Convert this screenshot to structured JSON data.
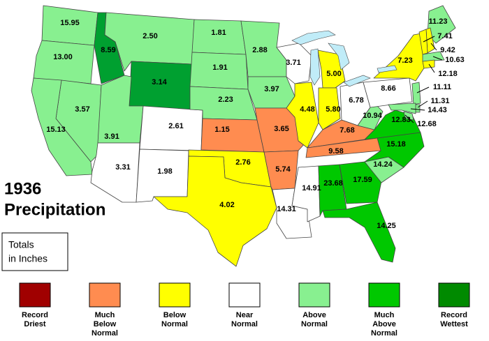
{
  "title": [
    "1936",
    "Precipitation"
  ],
  "units_box": [
    "Totals",
    "in Inches"
  ],
  "regions": [
    {
      "label": "15.95",
      "color": "#88f090"
    },
    {
      "label": "13.00",
      "color": "#88f090"
    },
    {
      "label": "8.59",
      "color": "#00a030"
    },
    {
      "label": "2.50",
      "color": "#88f090"
    },
    {
      "label": "3.14",
      "color": "#00a030"
    },
    {
      "label": "3.57",
      "color": "#88f090"
    },
    {
      "label": "15.13",
      "color": "#88f090"
    },
    {
      "label": "3.91",
      "color": "#88f090"
    },
    {
      "label": "3.31",
      "color": "#ffffff"
    },
    {
      "label": "2.61",
      "color": "#ffffff"
    },
    {
      "label": "1.98",
      "color": "#ffffff"
    },
    {
      "label": "1.81",
      "color": "#88f090"
    },
    {
      "label": "1.91",
      "color": "#88f090"
    },
    {
      "label": "2.23",
      "color": "#88f090"
    },
    {
      "label": "1.15",
      "color": "#ff8c50"
    },
    {
      "label": "2.76",
      "color": "#ffff00"
    },
    {
      "label": "4.02",
      "color": "#ffff00"
    },
    {
      "label": "2.88",
      "color": "#88f090"
    },
    {
      "label": "3.97",
      "color": "#88f090"
    },
    {
      "label": "3.65",
      "color": "#ff8c50"
    },
    {
      "label": "5.74",
      "color": "#ff8c50"
    },
    {
      "label": "14.31",
      "color": "#ffffff"
    },
    {
      "label": "14.91",
      "color": "#ffffff"
    },
    {
      "label": "23.68",
      "color": "#00c800"
    },
    {
      "label": "3.71",
      "color": "#ffffff"
    },
    {
      "label": "4.48",
      "color": "#ffff00"
    },
    {
      "label": "5.00",
      "color": "#ffff00"
    },
    {
      "label": "5.80",
      "color": "#ffff00"
    },
    {
      "label": "6.78",
      "color": "#ffffff"
    },
    {
      "label": "7.68",
      "color": "#ff8c50"
    },
    {
      "label": "9.58",
      "color": "#ff8c50"
    },
    {
      "label": "17.59",
      "color": "#00c800"
    },
    {
      "label": "14.25",
      "color": "#00c800"
    },
    {
      "label": "14.24",
      "color": "#88f090"
    },
    {
      "label": "15.18",
      "color": "#00c800"
    },
    {
      "label": "12.83",
      "color": "#00c800"
    },
    {
      "label": "10.94",
      "color": "#88f090"
    },
    {
      "label": "8.66",
      "color": "#ffffff"
    },
    {
      "label": "7.23",
      "color": "#ffff00"
    },
    {
      "label": "11.23",
      "color": "#88f090"
    },
    {
      "label": "7.41",
      "color": "#ffff00"
    },
    {
      "label": "9.42",
      "color": "#ffff00"
    },
    {
      "label": "10.63",
      "color": "#88f090"
    },
    {
      "label": "12.18",
      "color": "#ffff00"
    },
    {
      "label": "11.11",
      "color": "#88f090"
    },
    {
      "label": "11.31",
      "color": "#88f090"
    },
    {
      "label": "14.43",
      "color": "#88f090"
    },
    {
      "label": "12.68",
      "color": "#88f090"
    }
  ],
  "legend": [
    {
      "lines": [
        "Record",
        "Driest"
      ],
      "color": "#a00000"
    },
    {
      "lines": [
        "Much",
        "Below",
        "Normal"
      ],
      "color": "#ff8c50"
    },
    {
      "lines": [
        "Below",
        "Normal"
      ],
      "color": "#ffff00"
    },
    {
      "lines": [
        "Near",
        "Normal"
      ],
      "color": "#ffffff"
    },
    {
      "lines": [
        "Above",
        "Normal"
      ],
      "color": "#88f090"
    },
    {
      "lines": [
        "Much",
        "Above",
        "Normal"
      ],
      "color": "#00c800"
    },
    {
      "lines": [
        "Record",
        "Wettest"
      ],
      "color": "#008a00"
    }
  ]
}
